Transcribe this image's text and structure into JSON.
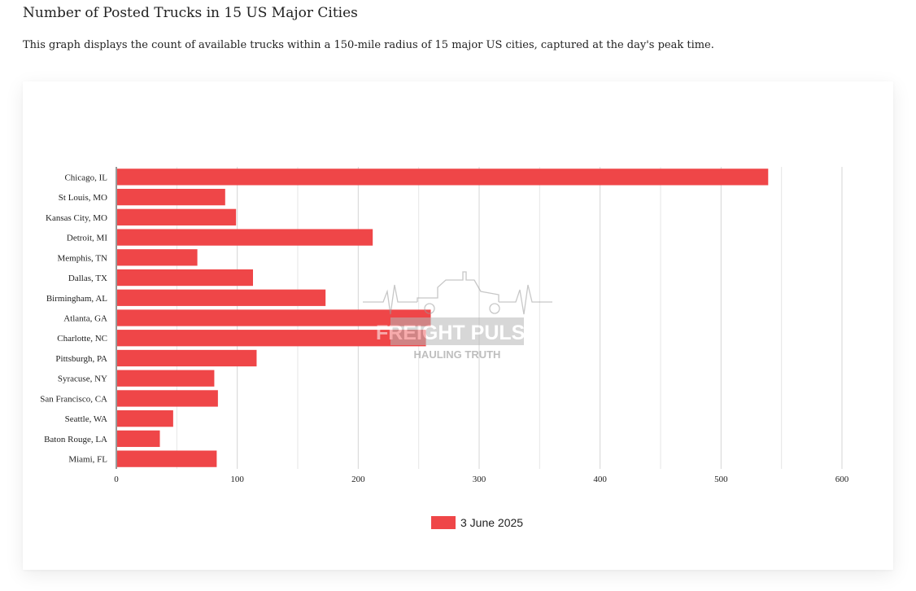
{
  "header": {
    "title": "Number of Posted Trucks in 15 US Major Cities",
    "subtitle": "This graph displays the count of available trucks within a 150-mile radius of 15 major US cities, captured at the day's peak time."
  },
  "watermark": {
    "brand_text": "FREIGHT PULSE",
    "tagline": "HAULING TRUTH",
    "icon": "truck-heartbeat-icon"
  },
  "colors": {
    "bar": "#ef4648",
    "grid": "#d4d4d4",
    "axis": "#333333"
  },
  "chart_data": {
    "type": "bar",
    "orientation": "horizontal",
    "categories": [
      "Chicago, IL",
      "St Louis, MO",
      "Kansas City, MO",
      "Detroit, MI",
      "Memphis, TN",
      "Dallas, TX",
      "Birmingham, AL",
      "Atlanta, GA",
      "Charlotte, NC",
      "Pittsburgh, PA",
      "Syracuse, NY",
      "San Francisco, CA",
      "Seattle, WA",
      "Baton Rouge, LA",
      "Miami, FL"
    ],
    "series": [
      {
        "name": "3 June 2025",
        "color": "#ef4648",
        "values": [
          539,
          90,
          99,
          212,
          67,
          113,
          173,
          260,
          256,
          116,
          81,
          84,
          47,
          36,
          83
        ]
      }
    ],
    "xlim": [
      0,
      600
    ],
    "xticks": [
      0,
      100,
      200,
      300,
      400,
      500,
      600
    ],
    "grid": true,
    "legend": "bottom-center"
  }
}
